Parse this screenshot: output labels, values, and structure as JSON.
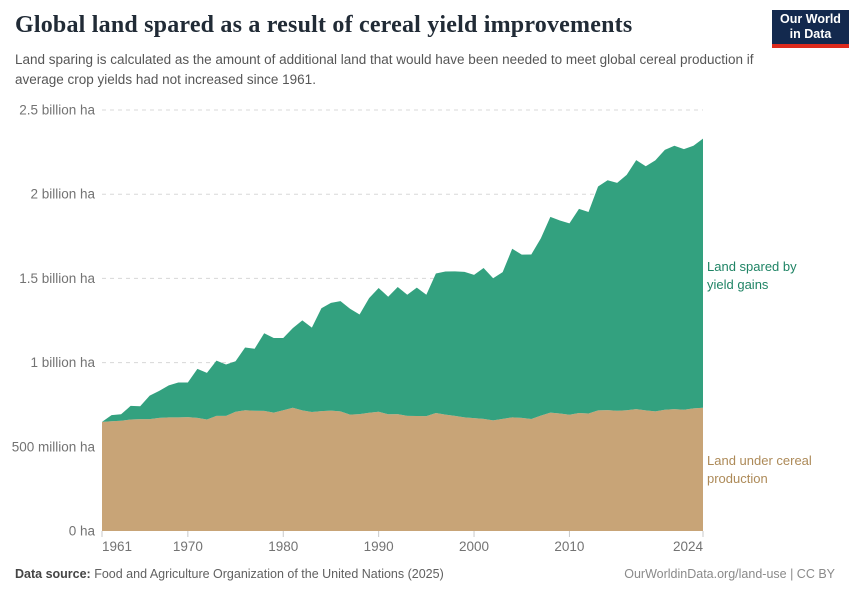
{
  "header": {
    "title": "Global land spared as a result of cereal yield improvements",
    "subtitle": "Land sparing is calculated as the amount of additional land that would have been needed to meet global cereal production if average crop yields had not increased since 1961.",
    "logo": {
      "line1": "Our World",
      "line2": "in Data",
      "bg_color": "#13294e",
      "accent_color": "#dd2a1c"
    }
  },
  "chart_data": {
    "type": "area",
    "stacked": true,
    "title": "Global land spared as a result of cereal yield improvements",
    "units": "million ha",
    "xlabel": "",
    "ylabel": "",
    "ylim": [
      0,
      2500
    ],
    "grid": "dashed-horizontal",
    "legend_position": "right-of-plot",
    "x": [
      1961,
      1962,
      1963,
      1964,
      1965,
      1966,
      1967,
      1968,
      1969,
      1970,
      1971,
      1972,
      1973,
      1974,
      1975,
      1976,
      1977,
      1978,
      1979,
      1980,
      1981,
      1982,
      1983,
      1984,
      1985,
      1986,
      1987,
      1988,
      1989,
      1990,
      1991,
      1992,
      1993,
      1994,
      1995,
      1996,
      1997,
      1998,
      1999,
      2000,
      2001,
      2002,
      2003,
      2004,
      2005,
      2006,
      2007,
      2008,
      2009,
      2010,
      2011,
      2012,
      2013,
      2014,
      2015,
      2016,
      2017,
      2018,
      2019,
      2020,
      2021,
      2022,
      2023,
      2024
    ],
    "series": [
      {
        "name": "Land under cereal production",
        "color": "#c8a477",
        "label_color": "#ad8a58",
        "values": [
          648,
          652,
          655,
          662,
          664,
          664,
          672,
          675,
          675,
          676,
          672,
          662,
          684,
          684,
          708,
          717,
          714,
          713,
          703,
          717,
          732,
          716,
          707,
          712,
          715,
          710,
          691,
          694,
          702,
          708,
          693,
          694,
          684,
          683,
          682,
          701,
          691,
          684,
          675,
          670,
          666,
          657,
          666,
          675,
          672,
          665,
          685,
          703,
          698,
          690,
          701,
          698,
          716,
          718,
          714,
          717,
          724,
          716,
          710,
          720,
          724,
          720,
          728,
          732
        ]
      },
      {
        "name": "Land spared by yield gains",
        "color": "#33a17f",
        "label_color": "#1f8465",
        "values": [
          0,
          36,
          38,
          81,
          77,
          140,
          160,
          190,
          207,
          206,
          291,
          277,
          328,
          305,
          300,
          373,
          368,
          461,
          443,
          429,
          473,
          535,
          501,
          611,
          640,
          655,
          629,
          592,
          681,
          735,
          698,
          755,
          719,
          762,
          721,
          828,
          850,
          858,
          864,
          851,
          896,
          844,
          871,
          1001,
          969,
          977,
          1053,
          1162,
          1146,
          1137,
          1212,
          1196,
          1330,
          1365,
          1353,
          1398,
          1478,
          1450,
          1491,
          1543,
          1564,
          1548,
          1560,
          1598
        ]
      }
    ],
    "ytick_values": [
      0,
      500,
      1000,
      1500,
      2000,
      2500
    ],
    "ytick_labels": [
      "0 ha",
      "500 million ha",
      "1 billion ha",
      "1.5 billion ha",
      "2 billion ha",
      "2.5 billion ha"
    ],
    "xticks": [
      1961,
      1970,
      1980,
      1990,
      2000,
      2010,
      2024
    ]
  },
  "annotations": {
    "spared_label": "Land spared by yield gains",
    "production_label": "Land under cereal production"
  },
  "footer": {
    "source_prefix": "Data source:",
    "source_text": "Food and Agriculture Organization of the United Nations (2025)",
    "right_text": "OurWorldinData.org/land-use | CC BY"
  },
  "colors": {
    "grid": "#d8d8d8",
    "axis_text": "#737373",
    "tick_mark": "#c9c9c9"
  }
}
